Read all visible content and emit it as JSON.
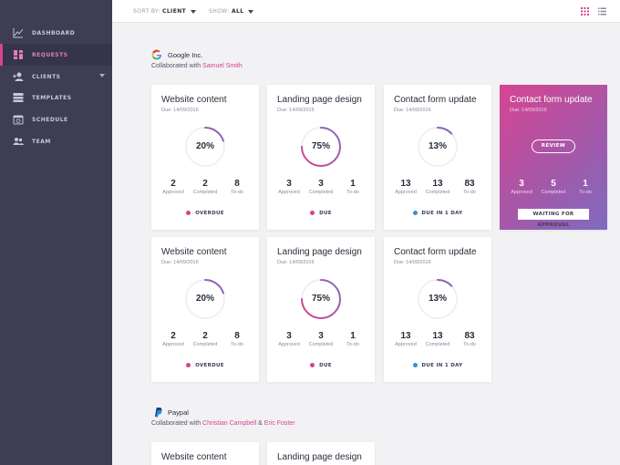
{
  "sidebar": {
    "items": [
      {
        "label": "DASHBOARD",
        "icon": "chart-line-icon"
      },
      {
        "label": "REQUESTS",
        "icon": "grid-icon",
        "active": true
      },
      {
        "label": "CLIENTS",
        "icon": "users-icon"
      },
      {
        "label": "TEMPLATES",
        "icon": "templates-icon"
      },
      {
        "label": "SCHEDULE",
        "icon": "calendar-icon"
      },
      {
        "label": "TEAM",
        "icon": "team-icon"
      }
    ]
  },
  "topbar": {
    "sort_label": "SORT BY:",
    "sort_value": "CLIENT",
    "show_label": "SHOW:",
    "show_value": "ALL",
    "grid_view_icon": "grid-view-icon",
    "list_view_icon": "list-view-icon"
  },
  "colors": {
    "accent": "#d6438f",
    "sidebar_bg": "#3d3d54",
    "ring_start": "#d6438f",
    "ring_end": "#7e6bc0",
    "overdue": "#d6438f",
    "due": "#d6438f",
    "due_soon": "#3b8fd9"
  },
  "groups": [
    {
      "name": "Google Inc.",
      "logo": "google-logo",
      "collab_prefix": "Collaborated with",
      "collaborators": [
        "Samuel Smith"
      ],
      "cards": [
        {
          "title": "Website content",
          "due": "Due: 14/09/2016",
          "percent": 20,
          "percent_label": "20%",
          "approved": "2",
          "completed": "2",
          "todo": "8",
          "status": "OVERDUE",
          "status_color": "#d6438f"
        },
        {
          "title": "Landing page design",
          "due": "Due: 14/09/2016",
          "percent": 75,
          "percent_label": "75%",
          "approved": "3",
          "completed": "3",
          "todo": "1",
          "status": "DUE",
          "status_color": "#d6438f"
        },
        {
          "title": "Contact form update",
          "due": "Due: 14/09/2016",
          "percent": 13,
          "percent_label": "13%",
          "approved": "13",
          "completed": "13",
          "todo": "83",
          "status": "DUE IN 1 DAY",
          "status_color": "#3b8fd9"
        },
        {
          "title": "Contact form update",
          "due": "Due: 14/09/2016",
          "featured": true,
          "review_label": "REVIEW",
          "approved": "3",
          "completed": "5",
          "todo": "1",
          "status": "WAITING FOR APPROVAL"
        },
        {
          "title": "Website content",
          "due": "Due: 14/09/2016",
          "percent": 20,
          "percent_label": "20%",
          "approved": "2",
          "completed": "2",
          "todo": "8",
          "status": "OVERDUE",
          "status_color": "#d6438f"
        },
        {
          "title": "Landing page design",
          "due": "Due: 14/09/2016",
          "percent": 75,
          "percent_label": "75%",
          "approved": "3",
          "completed": "3",
          "todo": "1",
          "status": "DUE",
          "status_color": "#d6438f"
        },
        {
          "title": "Contact form update",
          "due": "Due: 14/09/2016",
          "percent": 13,
          "percent_label": "13%",
          "approved": "13",
          "completed": "13",
          "todo": "83",
          "status": "DUE IN 1 DAY",
          "status_color": "#3b8fd9"
        }
      ]
    },
    {
      "name": "Paypal",
      "logo": "paypal-logo",
      "collab_prefix": "Collaborated with",
      "collaborators": [
        "Christian Campbell",
        "Eric Foster"
      ],
      "collab_joiner": "&",
      "cards": [
        {
          "title": "Website content"
        },
        {
          "title": "Landing page design"
        }
      ]
    }
  ],
  "labels": {
    "approved": "Approved",
    "completed": "Completed",
    "todo": "To-do"
  }
}
